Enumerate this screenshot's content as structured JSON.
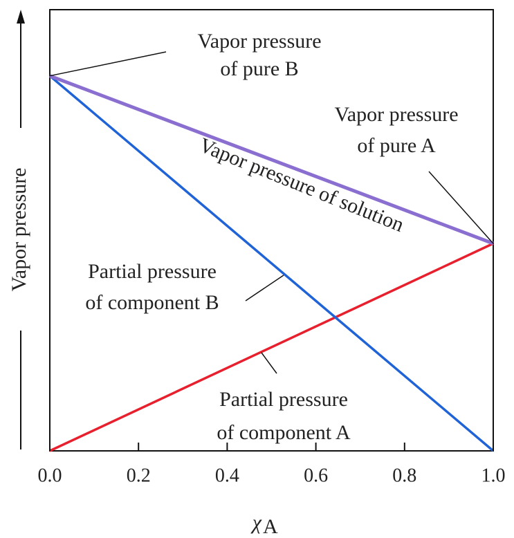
{
  "chart_data": {
    "type": "line",
    "x": [
      0,
      1
    ],
    "xlim": [
      0,
      1
    ],
    "xticks": [
      {
        "value": 0,
        "label": "0.0"
      },
      {
        "value": 0.2,
        "label": "0.2"
      },
      {
        "value": 0.4,
        "label": "0.4"
      },
      {
        "value": 0.6,
        "label": "0.6"
      },
      {
        "value": 0.8,
        "label": "0.8"
      },
      {
        "value": 1,
        "label": "1.0"
      }
    ],
    "ylim": [
      0,
      100
    ],
    "xlabel": "χ",
    "xlabel_sub": "A",
    "ylabel": "Vapor pressure",
    "series": [
      {
        "name": [
          "Partial pressure",
          "of component A"
        ],
        "color": "#e8202e",
        "values": [
          0,
          47
        ]
      },
      {
        "name": [
          "Partial pressure",
          "of component B"
        ],
        "color": "#1f63d6",
        "values": [
          85,
          0
        ]
      },
      {
        "name": [
          "Vapor pressure of solution"
        ],
        "color": "#8a6fd0",
        "values": [
          85,
          47
        ]
      }
    ],
    "annotations": [
      {
        "lines": [
          "Vapor pressure",
          "of pure B"
        ]
      },
      {
        "lines": [
          "Vapor pressure",
          "of pure A"
        ]
      }
    ]
  }
}
